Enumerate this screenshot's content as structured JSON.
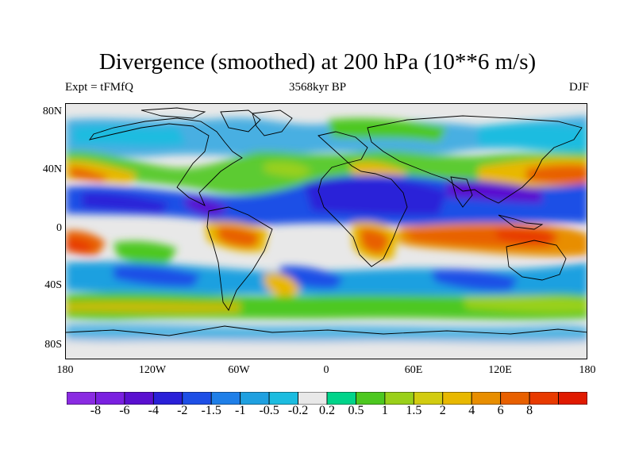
{
  "map": {
    "title": "Divergence (smoothed) at 200 hPa (10**6 m/s)",
    "left_label": "Expt = tFMfQ",
    "center_label": "3568kyr BP",
    "right_label": "DJF",
    "lat_ticks": [
      "80N",
      "40N",
      "0",
      "40S",
      "80S"
    ],
    "lon_ticks": [
      "180",
      "120W",
      "60W",
      "0",
      "60E",
      "120E",
      "180"
    ],
    "colorbar": {
      "colors": [
        "#8a2be2",
        "#7a20e0",
        "#5a10d0",
        "#2a20d8",
        "#1e4fe6",
        "#1f7fe8",
        "#1fa0e0",
        "#1cbce0",
        "#e8e8e8",
        "#00d48a",
        "#4dc820",
        "#9ad01a",
        "#d2cc10",
        "#e8b800",
        "#e88e00",
        "#e86000",
        "#e83a00",
        "#e01a00"
      ],
      "labels": [
        "-8",
        "-6",
        "-4",
        "-2",
        "-1.5",
        "-1",
        "-0.5",
        "-0.2",
        "0.2",
        "0.5",
        "1",
        "1.5",
        "2",
        "4",
        "6",
        "8"
      ]
    }
  }
}
